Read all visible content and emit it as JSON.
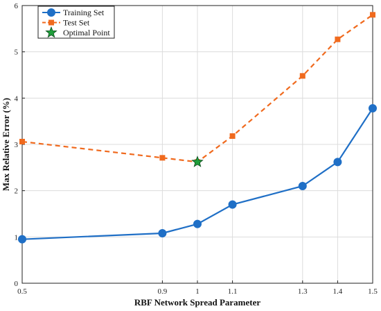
{
  "chart_data": {
    "type": "line",
    "xlabel": "RBF Network Spread Parameter",
    "ylabel": "Max Relative Error (%)",
    "xlim": [
      0.5,
      1.5
    ],
    "ylim": [
      0,
      6
    ],
    "x_ticks": [
      0.5,
      0.9,
      1,
      1.1,
      1.3,
      1.4,
      1.5
    ],
    "x_tick_labels": [
      "0.5",
      "0.9",
      "1",
      "1.1",
      "1.3",
      "1.4",
      "1.5"
    ],
    "y_ticks": [
      0,
      1,
      2,
      3,
      4,
      5,
      6
    ],
    "y_tick_labels": [
      "0",
      "1",
      "2",
      "3",
      "4",
      "5",
      "6"
    ],
    "grid": true,
    "legend_position": "top-left",
    "series": [
      {
        "name": "Training Set",
        "x": [
          0.5,
          0.9,
          1.0,
          1.1,
          1.3,
          1.4,
          1.5
        ],
        "values": [
          0.95,
          1.08,
          1.28,
          1.7,
          2.1,
          2.62,
          3.78
        ],
        "color": "#1f6fc6",
        "line": "solid",
        "marker": "circle"
      },
      {
        "name": "Test Set",
        "x": [
          0.5,
          0.9,
          1.0,
          1.1,
          1.3,
          1.4,
          1.5
        ],
        "values": [
          3.06,
          2.71,
          2.62,
          3.18,
          4.48,
          5.27,
          5.8
        ],
        "color": "#f06a1e",
        "line": "dashed",
        "marker": "square"
      },
      {
        "name": "Optimal Point",
        "x": [
          1.0
        ],
        "values": [
          2.62
        ],
        "color": "#1e9e3a",
        "line": "none",
        "marker": "star"
      }
    ]
  }
}
